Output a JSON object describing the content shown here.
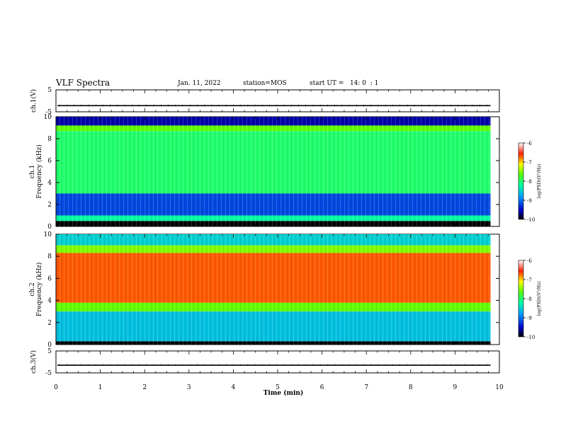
{
  "header": {
    "title": "VLF Spectra",
    "date": "Jan. 11, 2022",
    "station": "station=MOS",
    "start": "start UT =   14: 0  : 1"
  },
  "chart_data": [
    {
      "type": "line",
      "id": "ch1-waveform",
      "ylabel": "ch.1(V)",
      "ylim": [
        -5,
        5
      ],
      "yticks": [
        "5",
        "-5"
      ],
      "baseline_value": -2.2
    },
    {
      "type": "heatmap",
      "id": "ch1-spectrogram",
      "ylabel_top": "ch.1",
      "ylabel": "Frequency (kHz)",
      "ylim": [
        0,
        10
      ],
      "yticks": [
        "0",
        "2",
        "4",
        "6",
        "8",
        "10"
      ],
      "xlim": [
        0,
        10
      ],
      "colorbar": {
        "label": "log(PSD)(V²/Hz)",
        "range": [
          -10,
          -6
        ],
        "ticks": [
          "-6",
          "-7",
          "-8",
          "-9",
          "-10"
        ]
      },
      "bands": [
        {
          "f_from": 0,
          "f_to": 0.5,
          "level": -10
        },
        {
          "f_from": 0.5,
          "f_to": 1.0,
          "level": -8.2
        },
        {
          "f_from": 1.0,
          "f_to": 3.0,
          "level": -9.2
        },
        {
          "f_from": 3.0,
          "f_to": 8.7,
          "level": -8.0
        },
        {
          "f_from": 8.7,
          "f_to": 9.2,
          "level": -7.6
        },
        {
          "f_from": 9.2,
          "f_to": 10,
          "level": -9.6
        }
      ]
    },
    {
      "type": "heatmap",
      "id": "ch2-spectrogram",
      "ylabel_top": "ch.2",
      "ylabel": "Frequency (kHz)",
      "ylim": [
        0,
        10
      ],
      "yticks": [
        "0",
        "2",
        "4",
        "6",
        "8",
        "10"
      ],
      "xlim": [
        0,
        10
      ],
      "colorbar": {
        "label": "log(PSD)(V²/Hz)",
        "range": [
          -10,
          -6
        ],
        "ticks": [
          "-6",
          "-7",
          "-8",
          "-9",
          "-10"
        ]
      },
      "bands": [
        {
          "f_from": 0,
          "f_to": 0.3,
          "level": -10
        },
        {
          "f_from": 0.3,
          "f_to": 3.0,
          "level": -8.6
        },
        {
          "f_from": 3.0,
          "f_to": 3.8,
          "level": -7.6
        },
        {
          "f_from": 3.8,
          "f_to": 8.3,
          "level": -6.7
        },
        {
          "f_from": 8.3,
          "f_to": 9.0,
          "level": -7.5
        },
        {
          "f_from": 9.0,
          "f_to": 10,
          "level": -8.5
        }
      ]
    },
    {
      "type": "line",
      "id": "ch3-waveform",
      "ylabel": "ch.3(V)",
      "ylim": [
        -5,
        5
      ],
      "yticks": [
        "5",
        "-5"
      ],
      "baseline_value": -1.5
    }
  ],
  "xaxis": {
    "label": "Time (min)",
    "ticks": [
      "0",
      "1",
      "2",
      "3",
      "4",
      "5",
      "6",
      "7",
      "8",
      "9",
      "10"
    ],
    "range": [
      0,
      10
    ],
    "data_end": 9.8
  }
}
